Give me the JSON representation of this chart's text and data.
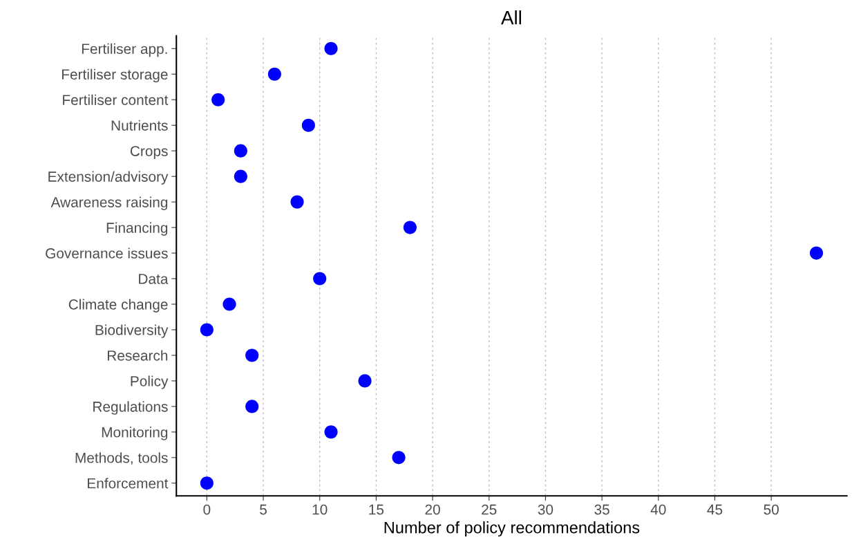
{
  "chart_data": {
    "type": "scatter",
    "title": "All",
    "xlabel": "Number of policy recommendations",
    "orientation": "horizontal",
    "categories": [
      "Fertiliser app.",
      "Fertiliser storage",
      "Fertiliser content",
      "Nutrients",
      "Crops",
      "Extension/advisory",
      "Awareness raising",
      "Financing",
      "Governance issues",
      "Data",
      "Climate change",
      "Biodiversity",
      "Research",
      "Policy",
      "Regulations",
      "Monitoring",
      "Methods, tools",
      "Enforcement"
    ],
    "values": [
      11,
      6,
      1,
      9,
      3,
      3,
      8,
      18,
      54,
      10,
      2,
      0,
      4,
      14,
      4,
      11,
      17,
      0
    ],
    "color": "#0000ff",
    "marker": "circle",
    "xlim": [
      -2.7,
      56.7
    ],
    "xticks": [
      0,
      5,
      10,
      15,
      20,
      25,
      30,
      35,
      40,
      45,
      50
    ],
    "grid": "x"
  }
}
